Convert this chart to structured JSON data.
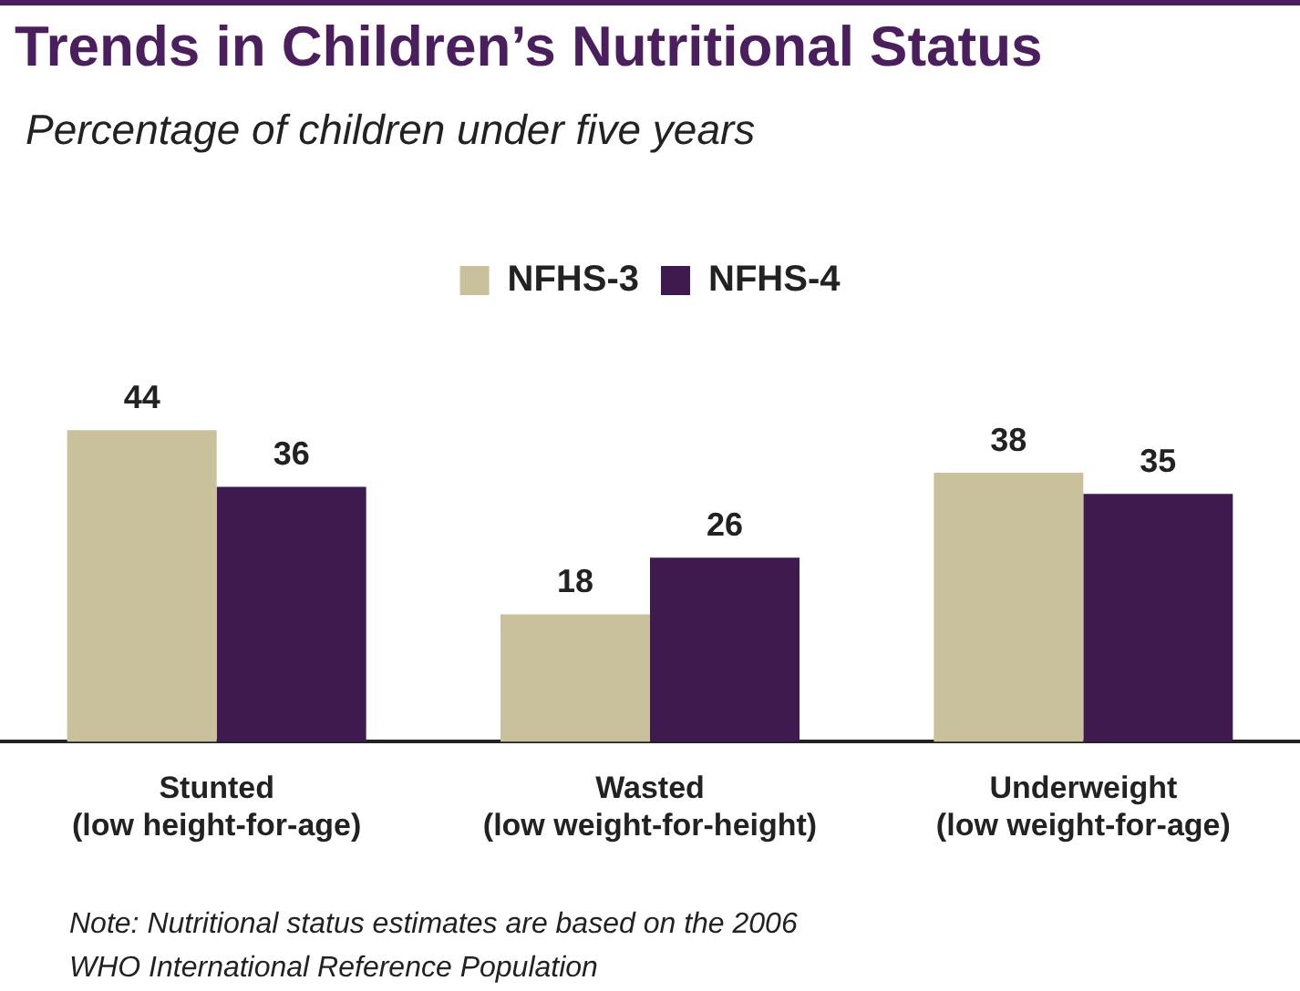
{
  "chart_data": {
    "type": "bar",
    "title": "Trends in Children’s Nutritional Status",
    "subtitle": "Percentage of children under five years",
    "categories": [
      "Stunted\n(low height-for-age)",
      "Wasted\n(low weight-for-height)",
      "Underweight\n(low weight-for-age)"
    ],
    "series": [
      {
        "name": "NFHS-3",
        "color": "#c9c19b",
        "values": [
          44,
          18,
          38
        ]
      },
      {
        "name": "NFHS-4",
        "color": "#3e1a4f",
        "values": [
          36,
          26,
          35
        ]
      }
    ],
    "data_labels": true,
    "legend": "top",
    "grid": false,
    "annotations": [
      "Note: Nutritional status estimates are based on the 2006\nWHO International Reference Population"
    ]
  }
}
